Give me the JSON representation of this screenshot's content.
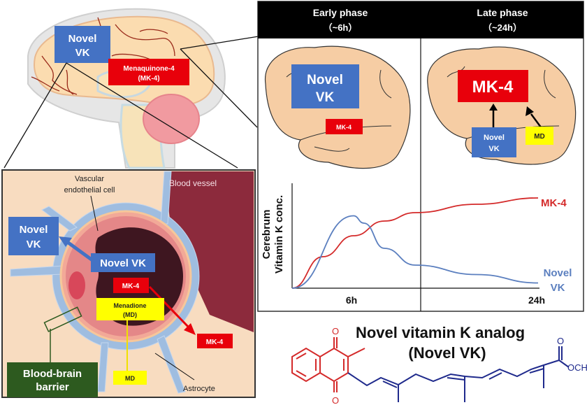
{
  "overview_brain": {
    "novel_vk_label": [
      "Novel",
      "VK"
    ],
    "mk4_label": [
      "Menaquinone-4",
      "(MK-4)"
    ]
  },
  "bbb_panel": {
    "vascular_label": [
      "Vascular",
      "endothelial cell"
    ],
    "blood_vessel_label": "Blood vessel",
    "novel_vk_out": [
      "Novel",
      "VK"
    ],
    "novel_vk_in": "Novel VK",
    "mk4_in": "MK-4",
    "menadione": [
      "Menadione",
      "(MD)"
    ],
    "mk4_out": "MK-4",
    "md": "MD",
    "bbb_label": [
      "Blood-brain",
      "barrier"
    ],
    "astrocyte_label": "Astrocyte"
  },
  "phases": {
    "early": {
      "title": "Early phase",
      "time": "（~6h）",
      "big_label": [
        "Novel",
        "VK"
      ],
      "small_label": "MK-4"
    },
    "late": {
      "title": "Late phase",
      "time": "（~24h）",
      "big_label": "MK-4",
      "source_novel_vk": [
        "Novel",
        "VK"
      ],
      "source_md": "MD"
    }
  },
  "chart_data": {
    "type": "line",
    "ylabel": [
      "Cerebrum",
      "Vitamin K conc."
    ],
    "x_ticks": [
      "6h",
      "24h"
    ],
    "series": [
      {
        "name": "MK-4",
        "color": "#d42a2a",
        "x": [
          0,
          3,
          6,
          9,
          12,
          18,
          24
        ],
        "y": [
          0,
          0.3,
          0.5,
          0.64,
          0.72,
          0.8,
          0.86
        ]
      },
      {
        "name": "Novel VK",
        "color": "#5b7fbf",
        "x": [
          0,
          6,
          7,
          9,
          12,
          18,
          24
        ],
        "y": [
          0,
          0.69,
          0.62,
          0.38,
          0.22,
          0.13,
          0.05
        ]
      }
    ],
    "series_labels": {
      "mk4": "MK-4",
      "novel_vk": [
        "Novel",
        "VK"
      ]
    }
  },
  "compound": {
    "title": "Novel vitamin K analog",
    "subtitle": "(Novel VK)",
    "ester_label": "OCH",
    "ester_subscript": "3",
    "oxygen": "O"
  },
  "colors": {
    "blue": "#4472c4",
    "red": "#e8000b",
    "yellow": "#ffff00",
    "green": "#2d5a1f",
    "peach": "#f8dcc0",
    "vessel": "#8c2a3c"
  }
}
